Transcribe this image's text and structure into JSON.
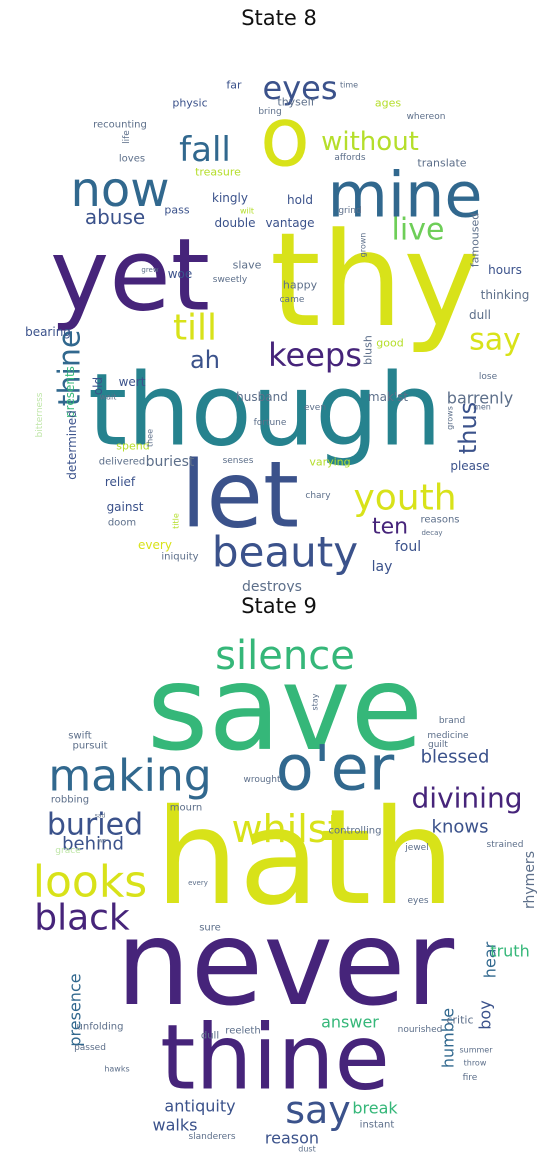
{
  "palette": {
    "dark": "#46247a",
    "purple": "#472d7b",
    "indigo": "#3b528b",
    "blue": "#31688e",
    "teal": "#26828e",
    "tealgreen": "#1f9e89",
    "green": "#35b779",
    "lime": "#6ece58",
    "yellowgreen": "#b5de2b",
    "yellow": "#d8e219",
    "pale": "#bfe6a8",
    "gray": "#5d6f8a"
  },
  "panels": [
    {
      "title": "State 8",
      "words": [
        {
          "t": "thy",
          "c": "yellow"
        },
        {
          "t": "though",
          "c": "teal"
        },
        {
          "t": "yet",
          "c": "dark"
        },
        {
          "t": "let",
          "c": "indigo"
        },
        {
          "t": "o",
          "c": "yellow"
        },
        {
          "t": "mine",
          "c": "blue"
        },
        {
          "t": "now",
          "c": "blue"
        },
        {
          "t": "beauty",
          "c": "indigo"
        },
        {
          "t": "youth",
          "c": "yellow"
        },
        {
          "t": "keeps",
          "c": "dark"
        },
        {
          "t": "eyes",
          "c": "indigo"
        },
        {
          "t": "fall",
          "c": "blue"
        },
        {
          "t": "till",
          "c": "yellow"
        },
        {
          "t": "live",
          "c": "lime"
        },
        {
          "t": "say",
          "c": "yellow"
        },
        {
          "t": "without",
          "c": "yellowgreen"
        },
        {
          "t": "thine",
          "c": "blue"
        },
        {
          "t": "thus",
          "c": "indigo"
        },
        {
          "t": "ah",
          "c": "indigo"
        },
        {
          "t": "ten",
          "c": "dark"
        },
        {
          "t": "abuse",
          "c": "indigo"
        },
        {
          "t": "barrenly",
          "c": "gray"
        },
        {
          "t": "buriest",
          "c": "gray"
        },
        {
          "t": "destroys",
          "c": "gray"
        },
        {
          "t": "husband",
          "c": "gray"
        },
        {
          "t": "mak'st",
          "c": "gray"
        },
        {
          "t": "thinking",
          "c": "gray"
        },
        {
          "t": "hours",
          "c": "indigo"
        },
        {
          "t": "dull",
          "c": "gray"
        },
        {
          "t": "please",
          "c": "indigo"
        },
        {
          "t": "foul",
          "c": "indigo"
        },
        {
          "t": "lay",
          "c": "indigo"
        },
        {
          "t": "relief",
          "c": "indigo"
        },
        {
          "t": "gainst",
          "c": "indigo"
        },
        {
          "t": "every",
          "c": "yellow"
        },
        {
          "t": "iniquity",
          "c": "gray"
        },
        {
          "t": "doom",
          "c": "gray"
        },
        {
          "t": "delivered",
          "c": "gray"
        },
        {
          "t": "wert",
          "c": "indigo"
        },
        {
          "t": "old",
          "c": "indigo"
        },
        {
          "t": "bearing",
          "c": "indigo"
        },
        {
          "t": "presents",
          "c": "green"
        },
        {
          "t": "determined",
          "c": "indigo"
        },
        {
          "t": "spend",
          "c": "yellowgreen"
        },
        {
          "t": "happy",
          "c": "gray"
        },
        {
          "t": "blush",
          "c": "gray"
        },
        {
          "t": "good",
          "c": "yellowgreen"
        },
        {
          "t": "slave",
          "c": "gray"
        },
        {
          "t": "sweetly",
          "c": "gray"
        },
        {
          "t": "woe",
          "c": "indigo"
        },
        {
          "t": "double",
          "c": "indigo"
        },
        {
          "t": "vantage",
          "c": "indigo"
        },
        {
          "t": "kingly",
          "c": "indigo"
        },
        {
          "t": "pass",
          "c": "indigo"
        },
        {
          "t": "hold",
          "c": "indigo"
        },
        {
          "t": "famoused",
          "c": "gray"
        },
        {
          "t": "translate",
          "c": "gray"
        },
        {
          "t": "affords",
          "c": "gray"
        },
        {
          "t": "loves",
          "c": "gray"
        },
        {
          "t": "treasure",
          "c": "yellowgreen"
        },
        {
          "t": "physic",
          "c": "indigo"
        },
        {
          "t": "far",
          "c": "indigo"
        },
        {
          "t": "thyself",
          "c": "gray"
        },
        {
          "t": "ages",
          "c": "yellowgreen"
        },
        {
          "t": "recounting",
          "c": "gray"
        },
        {
          "t": "bring",
          "c": "gray"
        },
        {
          "t": "whereon",
          "c": "gray"
        },
        {
          "t": "time",
          "c": "gray"
        },
        {
          "t": "life",
          "c": "gray"
        },
        {
          "t": "grind",
          "c": "gray"
        },
        {
          "t": "wilt",
          "c": "yellowgreen"
        },
        {
          "t": "grown",
          "c": "gray"
        },
        {
          "t": "grew",
          "c": "gray"
        },
        {
          "t": "came",
          "c": "gray"
        },
        {
          "t": "bitterness",
          "c": "pale"
        },
        {
          "t": "wait",
          "c": "gray"
        },
        {
          "t": "fortune",
          "c": "gray"
        },
        {
          "t": "even",
          "c": "gray"
        },
        {
          "t": "thee",
          "c": "gray"
        },
        {
          "t": "senses",
          "c": "gray"
        },
        {
          "t": "varying",
          "c": "yellowgreen"
        },
        {
          "t": "title",
          "c": "yellowgreen"
        },
        {
          "t": "chary",
          "c": "gray"
        },
        {
          "t": "reasons",
          "c": "gray"
        },
        {
          "t": "decay",
          "c": "gray"
        },
        {
          "t": "grows",
          "c": "gray"
        },
        {
          "t": "men",
          "c": "gray"
        },
        {
          "t": "lose",
          "c": "gray"
        }
      ]
    },
    {
      "title": "State 9",
      "words": [
        {
          "t": "hath",
          "c": "yellow"
        },
        {
          "t": "save",
          "c": "green"
        },
        {
          "t": "never",
          "c": "dark"
        },
        {
          "t": "thine",
          "c": "dark"
        },
        {
          "t": "o'er",
          "c": "blue"
        },
        {
          "t": "making",
          "c": "blue"
        },
        {
          "t": "silence",
          "c": "green"
        },
        {
          "t": "whilst",
          "c": "yellow"
        },
        {
          "t": "looks",
          "c": "yellow"
        },
        {
          "t": "black",
          "c": "dark"
        },
        {
          "t": "divining",
          "c": "dark"
        },
        {
          "t": "buried",
          "c": "indigo"
        },
        {
          "t": "say",
          "c": "indigo"
        },
        {
          "t": "blessed",
          "c": "indigo"
        },
        {
          "t": "behind",
          "c": "indigo"
        },
        {
          "t": "knows",
          "c": "indigo"
        },
        {
          "t": "rhymers",
          "c": "gray"
        },
        {
          "t": "hear",
          "c": "blue"
        },
        {
          "t": "truth",
          "c": "green"
        },
        {
          "t": "boy",
          "c": "indigo"
        },
        {
          "t": "presence",
          "c": "blue"
        },
        {
          "t": "answer",
          "c": "green"
        },
        {
          "t": "humble",
          "c": "blue"
        },
        {
          "t": "antiquity",
          "c": "indigo"
        },
        {
          "t": "walks",
          "c": "indigo"
        },
        {
          "t": "reason",
          "c": "indigo"
        },
        {
          "t": "break",
          "c": "green"
        },
        {
          "t": "robbing",
          "c": "gray"
        },
        {
          "t": "pursuit",
          "c": "gray"
        },
        {
          "t": "swift",
          "c": "gray"
        },
        {
          "t": "mourn",
          "c": "gray"
        },
        {
          "t": "wrought",
          "c": "gray"
        },
        {
          "t": "controlling",
          "c": "gray"
        },
        {
          "t": "jewel",
          "c": "gray"
        },
        {
          "t": "strained",
          "c": "gray"
        },
        {
          "t": "guilt",
          "c": "gray"
        },
        {
          "t": "medicine",
          "c": "gray"
        },
        {
          "t": "brand",
          "c": "gray"
        },
        {
          "t": "stay",
          "c": "gray"
        },
        {
          "t": "eyes",
          "c": "gray"
        },
        {
          "t": "sure",
          "c": "gray"
        },
        {
          "t": "every",
          "c": "gray"
        },
        {
          "t": "dull",
          "c": "gray"
        },
        {
          "t": "nourished",
          "c": "gray"
        },
        {
          "t": "critic",
          "c": "gray"
        },
        {
          "t": "unfolding",
          "c": "gray"
        },
        {
          "t": "reeleth",
          "c": "gray"
        },
        {
          "t": "summer",
          "c": "gray"
        },
        {
          "t": "throw",
          "c": "gray"
        },
        {
          "t": "passed",
          "c": "gray"
        },
        {
          "t": "fire",
          "c": "gray"
        },
        {
          "t": "hawks",
          "c": "gray"
        },
        {
          "t": "instant",
          "c": "gray"
        },
        {
          "t": "slanderers",
          "c": "gray"
        },
        {
          "t": "dust",
          "c": "gray"
        },
        {
          "t": "grace",
          "c": "pale"
        },
        {
          "t": "wo",
          "c": "gray"
        },
        {
          "t": "sad",
          "c": "gray"
        }
      ]
    }
  ]
}
